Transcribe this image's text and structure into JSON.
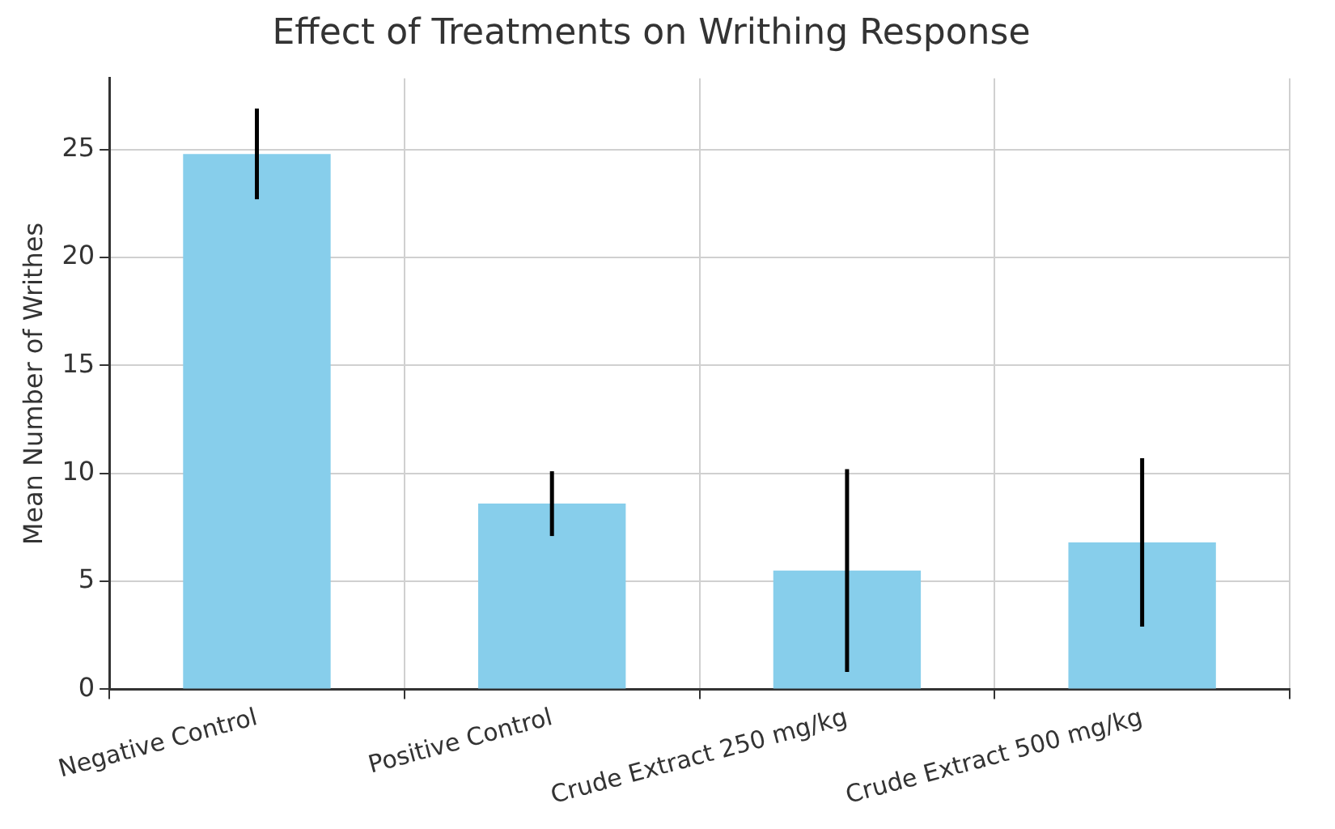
{
  "chart_data": {
    "type": "bar",
    "title": "Effect of Treatments on Writhing Response",
    "ylabel": "Mean Number of Writhes",
    "categories": [
      "Negative Control",
      "Positive Control",
      "Crude Extract 250 mg/kg",
      "Crude Extract 500 mg/kg"
    ],
    "values": [
      24.8,
      8.6,
      5.5,
      6.8
    ],
    "errors": [
      2.1,
      1.5,
      4.7,
      3.9
    ],
    "color": "#87ceeb",
    "ylim": [
      0,
      28.3
    ],
    "yticks": [
      0,
      5,
      10,
      15,
      20,
      25
    ],
    "grid": true,
    "legend": false
  }
}
